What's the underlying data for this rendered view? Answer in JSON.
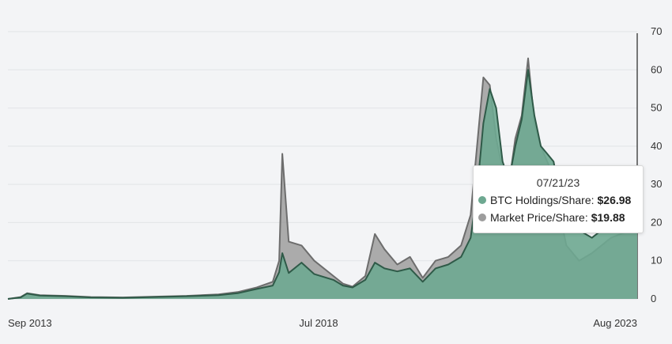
{
  "chart_data": {
    "type": "area",
    "x_labels": [
      "Sep 2013",
      "Jul 2018",
      "Aug 2023"
    ],
    "y_ticks": [
      0,
      10,
      20,
      30,
      40,
      50,
      60,
      70
    ],
    "ylim": [
      0,
      70
    ],
    "grid": true,
    "y_axis_side": "right",
    "series": [
      {
        "name": "BTC Holdings/Share",
        "color": "#6ea891",
        "line_color": "#2f5a48",
        "values": [
          [
            2013.7,
            0
          ],
          [
            2013.9,
            0.4
          ],
          [
            2014.0,
            1.4
          ],
          [
            2014.2,
            0.9
          ],
          [
            2014.6,
            0.7
          ],
          [
            2015.0,
            0.4
          ],
          [
            2015.5,
            0.3
          ],
          [
            2016.0,
            0.5
          ],
          [
            2016.5,
            0.7
          ],
          [
            2017.0,
            1.0
          ],
          [
            2017.3,
            1.5
          ],
          [
            2017.6,
            2.6
          ],
          [
            2017.85,
            3.5
          ],
          [
            2017.95,
            7.0
          ],
          [
            2018.0,
            12.0
          ],
          [
            2018.1,
            6.8
          ],
          [
            2018.3,
            9.5
          ],
          [
            2018.5,
            6.5
          ],
          [
            2018.8,
            5.0
          ],
          [
            2018.95,
            3.5
          ],
          [
            2019.1,
            3.0
          ],
          [
            2019.3,
            5.0
          ],
          [
            2019.45,
            9.5
          ],
          [
            2019.6,
            8.0
          ],
          [
            2019.8,
            7.2
          ],
          [
            2020.0,
            8.0
          ],
          [
            2020.2,
            4.5
          ],
          [
            2020.4,
            8.0
          ],
          [
            2020.6,
            9.0
          ],
          [
            2020.8,
            11.0
          ],
          [
            2020.95,
            16.0
          ],
          [
            2021.05,
            28.0
          ],
          [
            2021.15,
            46.0
          ],
          [
            2021.25,
            55.0
          ],
          [
            2021.35,
            50.0
          ],
          [
            2021.45,
            36.0
          ],
          [
            2021.55,
            31.0
          ],
          [
            2021.65,
            40.0
          ],
          [
            2021.75,
            47.0
          ],
          [
            2021.85,
            60.0
          ],
          [
            2021.95,
            48.0
          ],
          [
            2022.05,
            40.0
          ],
          [
            2022.15,
            38.0
          ],
          [
            2022.25,
            36.0
          ],
          [
            2022.35,
            27.0
          ],
          [
            2022.45,
            20.0
          ],
          [
            2022.55,
            20.0
          ],
          [
            2022.65,
            18.0
          ],
          [
            2022.85,
            16.0
          ],
          [
            2023.0,
            18.0
          ],
          [
            2023.15,
            23.0
          ],
          [
            2023.3,
            24.0
          ],
          [
            2023.45,
            25.0
          ],
          [
            2023.56,
            26.98
          ]
        ]
      },
      {
        "name": "Market Price/Share",
        "color": "#9d9d9d",
        "line_color": "#6d6d6d",
        "values": [
          [
            2013.7,
            0
          ],
          [
            2013.9,
            0.5
          ],
          [
            2014.0,
            1.5
          ],
          [
            2014.2,
            1.0
          ],
          [
            2014.6,
            0.8
          ],
          [
            2015.0,
            0.5
          ],
          [
            2015.5,
            0.4
          ],
          [
            2016.0,
            0.6
          ],
          [
            2016.5,
            0.8
          ],
          [
            2017.0,
            1.2
          ],
          [
            2017.3,
            1.8
          ],
          [
            2017.6,
            3.0
          ],
          [
            2017.85,
            4.5
          ],
          [
            2017.95,
            10.0
          ],
          [
            2018.0,
            38.0
          ],
          [
            2018.1,
            15.0
          ],
          [
            2018.3,
            14.0
          ],
          [
            2018.5,
            10.0
          ],
          [
            2018.8,
            6.0
          ],
          [
            2018.95,
            4.0
          ],
          [
            2019.1,
            3.2
          ],
          [
            2019.3,
            6.0
          ],
          [
            2019.45,
            17.0
          ],
          [
            2019.6,
            13.0
          ],
          [
            2019.8,
            9.0
          ],
          [
            2020.0,
            11.0
          ],
          [
            2020.2,
            5.5
          ],
          [
            2020.4,
            10.0
          ],
          [
            2020.6,
            11.0
          ],
          [
            2020.8,
            14.0
          ],
          [
            2020.95,
            22.0
          ],
          [
            2021.05,
            40.0
          ],
          [
            2021.15,
            58.0
          ],
          [
            2021.25,
            56.0
          ],
          [
            2021.35,
            42.0
          ],
          [
            2021.45,
            34.0
          ],
          [
            2021.55,
            30.0
          ],
          [
            2021.65,
            42.0
          ],
          [
            2021.75,
            48.0
          ],
          [
            2021.85,
            63.0
          ],
          [
            2021.95,
            46.0
          ],
          [
            2022.05,
            40.0
          ],
          [
            2022.15,
            36.0
          ],
          [
            2022.25,
            32.0
          ],
          [
            2022.35,
            22.0
          ],
          [
            2022.45,
            14.0
          ],
          [
            2022.55,
            12.0
          ],
          [
            2022.65,
            10.0
          ],
          [
            2022.85,
            12.0
          ],
          [
            2023.0,
            14.0
          ],
          [
            2023.15,
            16.0
          ],
          [
            2023.3,
            17.0
          ],
          [
            2023.45,
            18.0
          ],
          [
            2023.56,
            19.88
          ]
        ]
      }
    ],
    "tooltip": {
      "date": "07/21/23",
      "rows": [
        {
          "label": "BTC Holdings/Share:",
          "value": "$26.98",
          "color": "#6ea891"
        },
        {
          "label": "Market Price/Share:",
          "value": "$19.88",
          "color": "#9d9d9d"
        }
      ]
    }
  }
}
